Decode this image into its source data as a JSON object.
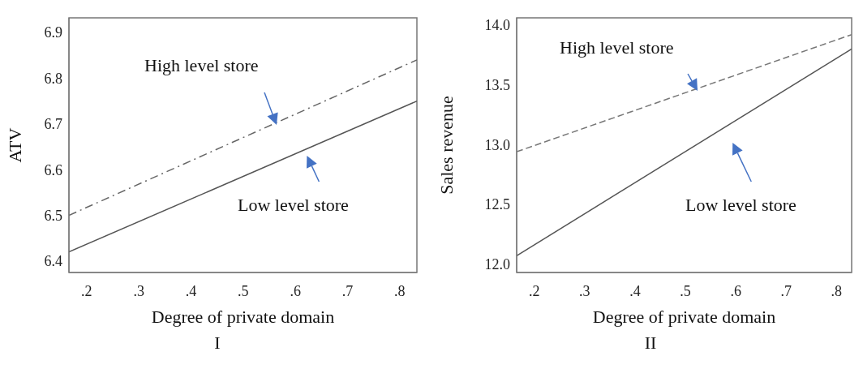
{
  "chart_data": [
    {
      "type": "line",
      "title": "I",
      "xlabel": "Degree of private domain",
      "ylabel": "ATV",
      "xlim": [
        0.166,
        0.833
      ],
      "xticks": [
        {
          "value": 0.2,
          "label": ".2"
        },
        {
          "value": 0.3,
          "label": ".3"
        },
        {
          "value": 0.4,
          "label": ".4"
        },
        {
          "value": 0.5,
          "label": ".5"
        },
        {
          "value": 0.6,
          "label": ".6"
        },
        {
          "value": 0.7,
          "label": ".7"
        },
        {
          "value": 0.8,
          "label": ".8"
        }
      ],
      "ylim": [
        6.375,
        6.932
      ],
      "yticks": [
        6.4,
        6.5,
        6.6,
        6.7,
        6.8,
        6.9
      ],
      "grid": false,
      "series": [
        {
          "name": "High level store",
          "color": "#666666",
          "line_style": "dashdot",
          "x": [
            0.166,
            0.833
          ],
          "values": [
            6.5,
            6.84
          ]
        },
        {
          "name": "Low level store",
          "color": "#555555",
          "line_style": "solid",
          "x": [
            0.166,
            0.833
          ],
          "values": [
            6.42,
            6.75
          ]
        }
      ]
    },
    {
      "type": "line",
      "title": "II",
      "xlabel": "Degree of private domain",
      "ylabel": "Sales revenue",
      "xlim": [
        0.165,
        0.83
      ],
      "xticks": [
        {
          "value": 0.2,
          "label": ".2"
        },
        {
          "value": 0.3,
          "label": ".3"
        },
        {
          "value": 0.4,
          "label": ".4"
        },
        {
          "value": 0.5,
          "label": ".5"
        },
        {
          "value": 0.6,
          "label": ".6"
        },
        {
          "value": 0.7,
          "label": ".7"
        },
        {
          "value": 0.8,
          "label": ".8"
        }
      ],
      "ylim": [
        11.93,
        14.06
      ],
      "yticks": [
        {
          "value": 12,
          "label": "12.0"
        },
        {
          "value": 12.5,
          "label": "12.5"
        },
        {
          "value": 13,
          "label": "13.0"
        },
        {
          "value": 13.5,
          "label": "13.5"
        },
        {
          "value": 14,
          "label": "14.0"
        }
      ],
      "grid": false,
      "series": [
        {
          "name": "High level store",
          "color": "#777777",
          "line_style": "dashed",
          "x": [
            0.165,
            0.83
          ],
          "values": [
            12.94,
            13.92
          ]
        },
        {
          "name": "Low level store",
          "color": "#555555",
          "line_style": "solid",
          "x": [
            0.165,
            0.83
          ],
          "values": [
            12.07,
            13.8
          ]
        }
      ]
    }
  ]
}
